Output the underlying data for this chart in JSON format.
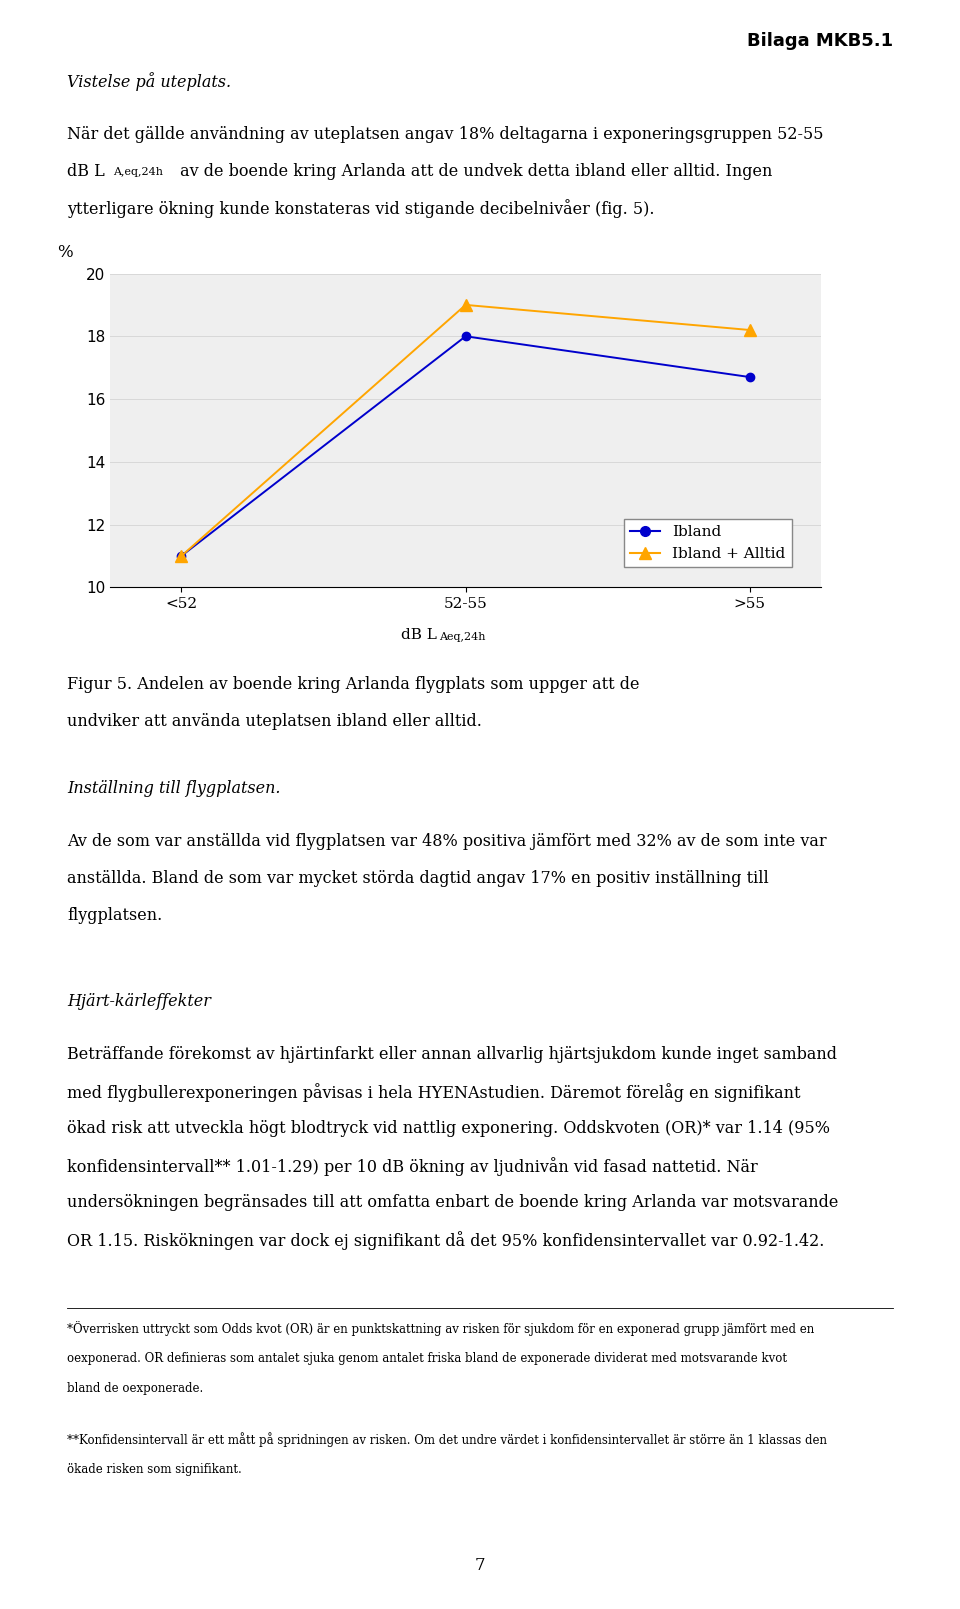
{
  "categories": [
    "<52",
    "52-55",
    ">55"
  ],
  "ibland_values": [
    11,
    18,
    16.7
  ],
  "ibland_alltid_values": [
    11,
    19,
    18.2
  ],
  "ibland_color": "#0000cc",
  "ibland_alltid_color": "#ffa500",
  "ylabel": "%",
  "ylim": [
    10,
    20
  ],
  "yticks": [
    10,
    12,
    14,
    16,
    18,
    20
  ],
  "legend_ibland": "Ibland",
  "legend_ibland_alltid": "Ibland + Alltid",
  "title_header": "Bilaga MKB5.1",
  "background_color": "#ffffff",
  "grid_color": "#d8d8d8",
  "chart_bg": "#efefef",
  "page_number": "7",
  "font_body": 11.5,
  "font_small": 8.5
}
